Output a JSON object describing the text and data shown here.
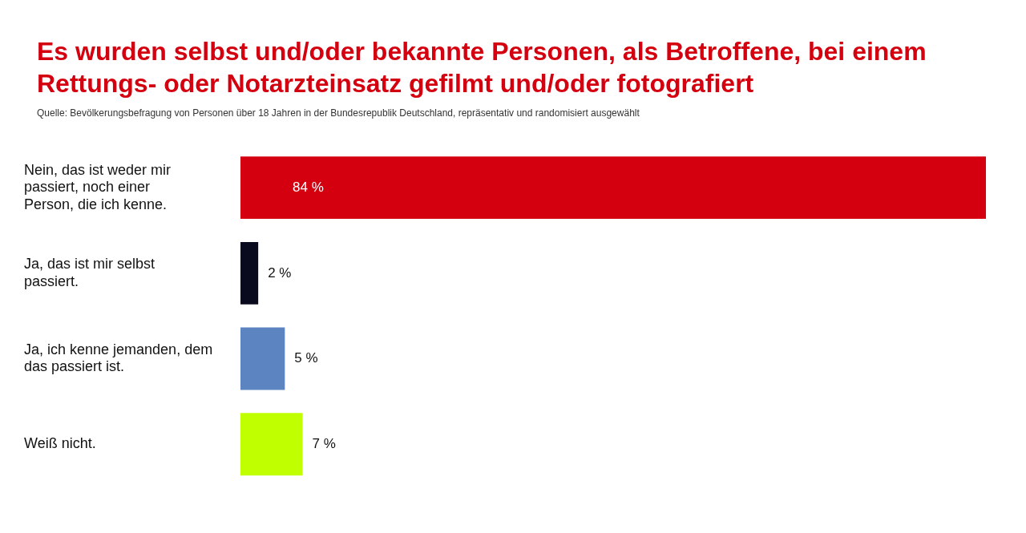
{
  "chart_data": {
    "type": "bar",
    "orientation": "horizontal",
    "title": "Es wurden selbst und/oder bekannte Personen, als Betroffene, bei einem Rettungs- oder Notarzteinsatz gefilmt und/oder fotografiert",
    "annotations": [
      "Quelle: Bevölkerungsbefragung von Personen über 18 Jahren in der Bundesrepublik Deutschland, repräsentativ und randomisiert ausgewählt"
    ],
    "categories": [
      "Nein, das ist weder mir passiert, noch einer Person, die ich kenne.",
      "Ja, das ist mir selbst passiert.",
      "Ja, ich kenne jemanden, dem das passiert ist.",
      "Weiß nicht."
    ],
    "values": [
      84,
      2,
      5,
      7
    ],
    "colors": [
      "#d4000f",
      "#0a0a1e",
      "#5b84c0",
      "#bfff00"
    ],
    "value_labels": [
      "84 %",
      "2 %",
      "5 %",
      "7 %"
    ],
    "xlim": [
      0,
      84
    ],
    "tick_labels": "y",
    "legend": false
  }
}
